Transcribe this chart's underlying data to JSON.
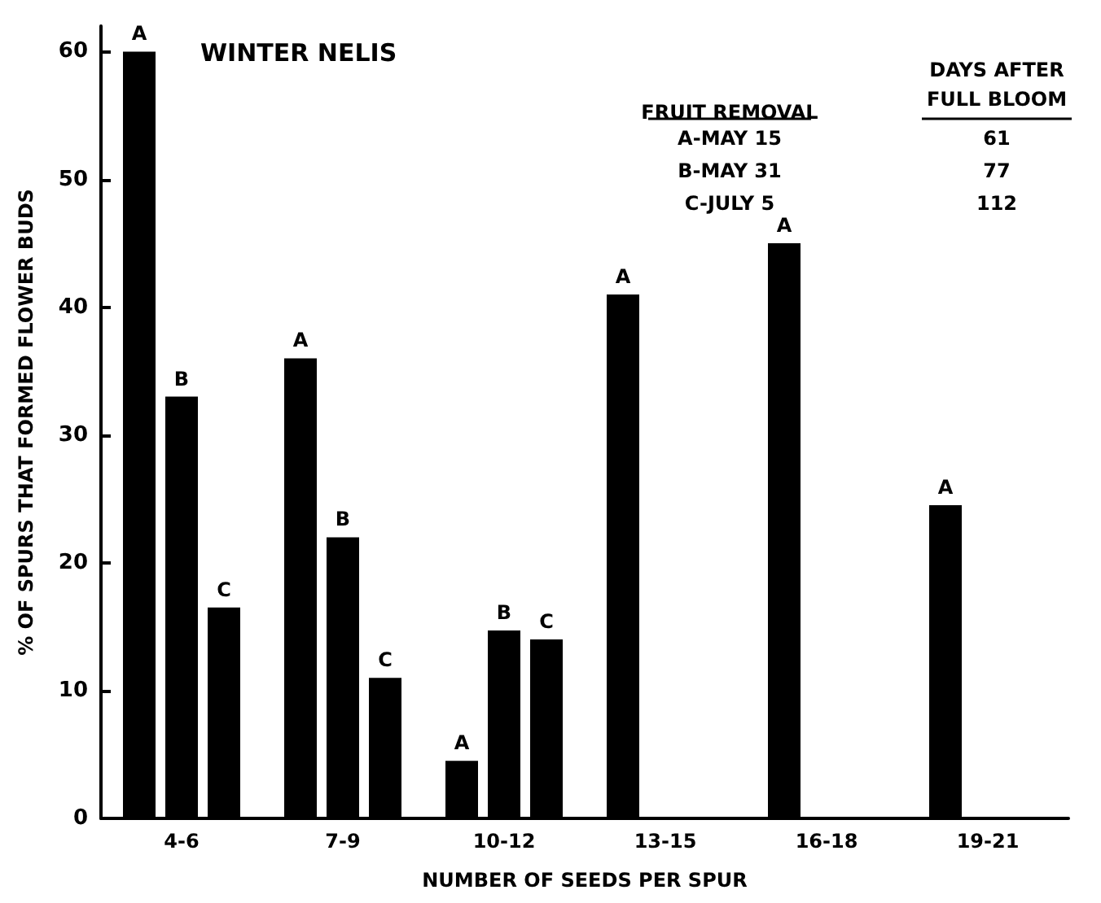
{
  "chart_data": {
    "type": "bar",
    "title": "WINTER NELIS",
    "xlabel": "NUMBER OF SEEDS PER SPUR",
    "ylabel": "% OF SPURS THAT FORMED FLOWER BUDS",
    "categories": [
      "4-6",
      "7-9",
      "10-12",
      "13-15",
      "16-18",
      "19-21"
    ],
    "series": [
      {
        "name": "A",
        "color": "#000000",
        "values": [
          60,
          36,
          4.5,
          41,
          45,
          24.5
        ]
      },
      {
        "name": "B",
        "color": "#000000",
        "values": [
          33,
          22,
          14.7,
          null,
          null,
          null
        ]
      },
      {
        "name": "C",
        "color": "#000000",
        "values": [
          16.5,
          11,
          14,
          null,
          null,
          null
        ]
      }
    ],
    "ylim": [
      0,
      62
    ],
    "yticks": [
      0,
      10,
      20,
      30,
      40,
      50,
      60
    ],
    "grid": false,
    "legend": false,
    "annotations": [
      "FRUIT REMOVAL",
      "DAYS AFTER FULL BLOOM",
      "A-MAY 15",
      "61",
      "B-MAY 31",
      "77",
      "C-JULY 5",
      "112"
    ]
  }
}
